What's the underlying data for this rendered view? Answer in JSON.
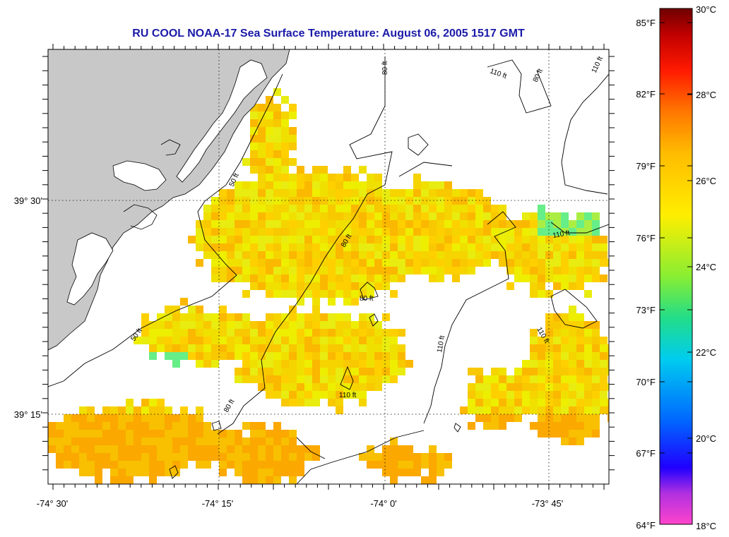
{
  "title": "RU COOL  NOAA-17  Sea Surface Temperature:  August 06, 2005 1517 GMT",
  "map": {
    "lon_labels": [
      "-74° 30'",
      "-74° 15'",
      "-74° 0'",
      "-73° 45'"
    ],
    "lat_labels": [
      "39° 30'",
      "39° 15'"
    ],
    "contour_labels": [
      "80 ft",
      "110 ft",
      "80 ft",
      "110 ft",
      "50 ft",
      "80 ft",
      "110 ft",
      "80 ft",
      "110 ft",
      "50 ft",
      "110 ft",
      "80 ft"
    ],
    "colors": {
      "land": "#c8c8c8",
      "water_nodata": "#ffffff",
      "grid": "#000000"
    }
  },
  "colorbar": {
    "fahrenheit_labels": [
      "85°F",
      "82°F",
      "79°F",
      "76°F",
      "73°F",
      "70°F",
      "67°F",
      "64°F"
    ],
    "celsius_labels": [
      "30°C",
      "28°C",
      "26°C",
      "24°C",
      "22°C",
      "20°C",
      "18°C"
    ],
    "range_c": [
      18,
      30
    ],
    "colors": [
      "#ff44cc",
      "#8a2be2",
      "#0000ff",
      "#00aaff",
      "#00e0d0",
      "#33dd66",
      "#aaee22",
      "#ffee00",
      "#ffaa00",
      "#ff6600",
      "#ff1100",
      "#bb0000",
      "#7a0000"
    ]
  }
}
